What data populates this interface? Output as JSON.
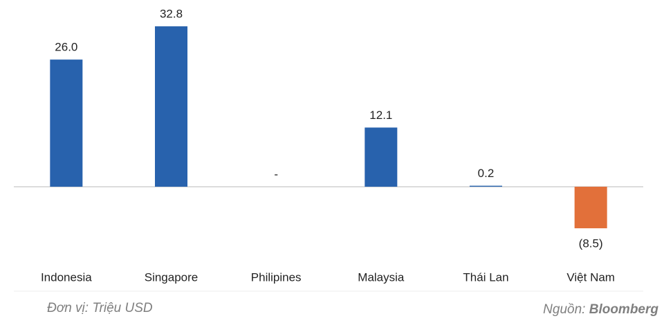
{
  "chart_data": {
    "type": "bar",
    "categories": [
      "Indonesia",
      "Singapore",
      "Philipines",
      "Malaysia",
      "Thái Lan",
      "Việt Nam"
    ],
    "values": [
      26.0,
      32.8,
      0,
      12.1,
      0.2,
      -8.5
    ],
    "value_labels": [
      "26.0",
      "32.8",
      "-",
      "12.1",
      "0.2",
      "(8.5)"
    ],
    "colors": [
      "#2862ad",
      "#2862ad",
      "#2862ad",
      "#2862ad",
      "#2862ad",
      "#e2703a"
    ],
    "ylim": [
      -15,
      35
    ],
    "note": "Đơn vị: Triệu USD",
    "source_label": "Nguồn:",
    "source": "Bloomberg"
  }
}
